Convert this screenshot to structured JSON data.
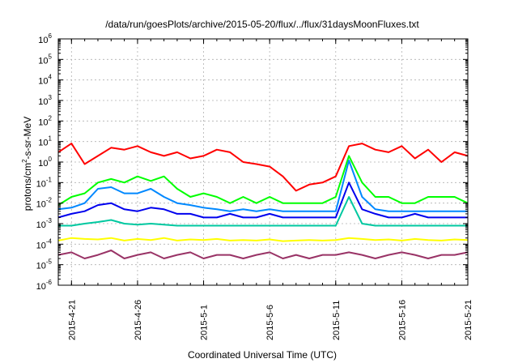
{
  "chart_data": {
    "type": "line",
    "title": "/data/run/goesPlots/archive/2015-05-20/flux/../flux/31daysMoonFluxes.txt",
    "xlabel": "Coordinated Universal Time (UTC)",
    "ylabel_parts": [
      "protons/cm",
      "2",
      "-s-sr-MeV"
    ],
    "y_scale": "log",
    "ylim": [
      1e-06,
      1000000.0
    ],
    "xlim": [
      "2015-04-20",
      "2015-05-21"
    ],
    "grid": true,
    "x_ticks": [
      "2015-4-21",
      "2015-4-26",
      "2015-5-1",
      "2015-5-6",
      "2015-5-11",
      "2015-5-16",
      "2015-5-21"
    ],
    "y_ticks": [
      {
        "base": "10",
        "exp": "6"
      },
      {
        "base": "10",
        "exp": "5"
      },
      {
        "base": "10",
        "exp": "4"
      },
      {
        "base": "10",
        "exp": "3"
      },
      {
        "base": "10",
        "exp": "2"
      },
      {
        "base": "10",
        "exp": "1"
      },
      {
        "base": "10",
        "exp": "0"
      },
      {
        "base": "10",
        "exp": "-1"
      },
      {
        "base": "10",
        "exp": "-2"
      },
      {
        "base": "10",
        "exp": "-3"
      },
      {
        "base": "10",
        "exp": "-4"
      },
      {
        "base": "10",
        "exp": "-5"
      },
      {
        "base": "10",
        "exp": "-6"
      }
    ],
    "series": [
      {
        "color": "#ff0000",
        "x": [
          "2015-04-20",
          "2015-04-21",
          "2015-04-22",
          "2015-04-23",
          "2015-04-24",
          "2015-04-25",
          "2015-04-26",
          "2015-04-27",
          "2015-04-28",
          "2015-04-29",
          "2015-04-30",
          "2015-05-01",
          "2015-05-02",
          "2015-05-03",
          "2015-05-04",
          "2015-05-05",
          "2015-05-06",
          "2015-05-07",
          "2015-05-08",
          "2015-05-09",
          "2015-05-10",
          "2015-05-11",
          "2015-05-12",
          "2015-05-13",
          "2015-05-14",
          "2015-05-15",
          "2015-05-16",
          "2015-05-17",
          "2015-05-18",
          "2015-05-19",
          "2015-05-20",
          "2015-05-21"
        ],
        "y": [
          3,
          8,
          0.8,
          2,
          5,
          4,
          6,
          3,
          2,
          3,
          1.5,
          2,
          4,
          3,
          1,
          0.8,
          0.6,
          0.2,
          0.04,
          0.08,
          0.1,
          0.2,
          6,
          8,
          4,
          3,
          6,
          1.5,
          4,
          1,
          3,
          2
        ]
      },
      {
        "color": "#00ff00",
        "x": [
          "2015-04-20",
          "2015-04-21",
          "2015-04-22",
          "2015-04-23",
          "2015-04-24",
          "2015-04-25",
          "2015-04-26",
          "2015-04-27",
          "2015-04-28",
          "2015-04-29",
          "2015-04-30",
          "2015-05-01",
          "2015-05-02",
          "2015-05-03",
          "2015-05-04",
          "2015-05-05",
          "2015-05-06",
          "2015-05-07",
          "2015-05-08",
          "2015-05-09",
          "2015-05-10",
          "2015-05-11",
          "2015-05-12",
          "2015-05-13",
          "2015-05-14",
          "2015-05-15",
          "2015-05-16",
          "2015-05-17",
          "2015-05-18",
          "2015-05-19",
          "2015-05-20",
          "2015-05-21"
        ],
        "y": [
          0.008,
          0.02,
          0.03,
          0.1,
          0.15,
          0.1,
          0.2,
          0.12,
          0.2,
          0.05,
          0.02,
          0.03,
          0.02,
          0.01,
          0.02,
          0.01,
          0.02,
          0.01,
          0.01,
          0.01,
          0.01,
          0.02,
          2,
          0.1,
          0.02,
          0.02,
          0.01,
          0.01,
          0.02,
          0.02,
          0.02,
          0.01
        ]
      },
      {
        "color": "#0088ff",
        "x": [
          "2015-04-20",
          "2015-04-21",
          "2015-04-22",
          "2015-04-23",
          "2015-04-24",
          "2015-04-25",
          "2015-04-26",
          "2015-04-27",
          "2015-04-28",
          "2015-04-29",
          "2015-04-30",
          "2015-05-01",
          "2015-05-02",
          "2015-05-03",
          "2015-05-04",
          "2015-05-05",
          "2015-05-06",
          "2015-05-07",
          "2015-05-08",
          "2015-05-09",
          "2015-05-10",
          "2015-05-11",
          "2015-05-12",
          "2015-05-13",
          "2015-05-14",
          "2015-05-15",
          "2015-05-16",
          "2015-05-17",
          "2015-05-18",
          "2015-05-19",
          "2015-05-20",
          "2015-05-21"
        ],
        "y": [
          0.005,
          0.006,
          0.01,
          0.05,
          0.06,
          0.03,
          0.03,
          0.05,
          0.02,
          0.01,
          0.008,
          0.006,
          0.005,
          0.004,
          0.005,
          0.004,
          0.005,
          0.004,
          0.004,
          0.004,
          0.004,
          0.004,
          1.2,
          0.02,
          0.005,
          0.004,
          0.004,
          0.004,
          0.004,
          0.004,
          0.004,
          0.004
        ]
      },
      {
        "color": "#0000ee",
        "x": [
          "2015-04-20",
          "2015-04-21",
          "2015-04-22",
          "2015-04-23",
          "2015-04-24",
          "2015-04-25",
          "2015-04-26",
          "2015-04-27",
          "2015-04-28",
          "2015-04-29",
          "2015-04-30",
          "2015-05-01",
          "2015-05-02",
          "2015-05-03",
          "2015-05-04",
          "2015-05-05",
          "2015-05-06",
          "2015-05-07",
          "2015-05-08",
          "2015-05-09",
          "2015-05-10",
          "2015-05-11",
          "2015-05-12",
          "2015-05-13",
          "2015-05-14",
          "2015-05-15",
          "2015-05-16",
          "2015-05-17",
          "2015-05-18",
          "2015-05-19",
          "2015-05-20",
          "2015-05-21"
        ],
        "y": [
          0.002,
          0.003,
          0.004,
          0.008,
          0.01,
          0.005,
          0.004,
          0.006,
          0.005,
          0.003,
          0.003,
          0.002,
          0.002,
          0.003,
          0.002,
          0.002,
          0.003,
          0.002,
          0.002,
          0.002,
          0.002,
          0.002,
          0.1,
          0.005,
          0.003,
          0.002,
          0.002,
          0.003,
          0.002,
          0.002,
          0.002,
          0.002
        ]
      },
      {
        "color": "#00c8a0",
        "x": [
          "2015-04-20",
          "2015-04-21",
          "2015-04-22",
          "2015-04-23",
          "2015-04-24",
          "2015-04-25",
          "2015-04-26",
          "2015-04-27",
          "2015-04-28",
          "2015-04-29",
          "2015-04-30",
          "2015-05-01",
          "2015-05-02",
          "2015-05-03",
          "2015-05-04",
          "2015-05-05",
          "2015-05-06",
          "2015-05-07",
          "2015-05-08",
          "2015-05-09",
          "2015-05-10",
          "2015-05-11",
          "2015-05-12",
          "2015-05-13",
          "2015-05-14",
          "2015-05-15",
          "2015-05-16",
          "2015-05-17",
          "2015-05-18",
          "2015-05-19",
          "2015-05-20",
          "2015-05-21"
        ],
        "y": [
          0.0008,
          0.0008,
          0.001,
          0.0012,
          0.0015,
          0.001,
          0.0009,
          0.001,
          0.0009,
          0.0008,
          0.0008,
          0.0008,
          0.0008,
          0.0008,
          0.0008,
          0.0008,
          0.0008,
          0.0008,
          0.0008,
          0.0008,
          0.0008,
          0.0008,
          0.02,
          0.001,
          0.0008,
          0.0008,
          0.0008,
          0.0008,
          0.0008,
          0.0008,
          0.0008,
          0.0008
        ]
      },
      {
        "color": "#ffff00",
        "x": [
          "2015-04-20",
          "2015-04-21",
          "2015-04-22",
          "2015-04-23",
          "2015-04-24",
          "2015-04-25",
          "2015-04-26",
          "2015-04-27",
          "2015-04-28",
          "2015-04-29",
          "2015-04-30",
          "2015-05-01",
          "2015-05-02",
          "2015-05-03",
          "2015-05-04",
          "2015-05-05",
          "2015-05-06",
          "2015-05-07",
          "2015-05-08",
          "2015-05-09",
          "2015-05-10",
          "2015-05-11",
          "2015-05-12",
          "2015-05-13",
          "2015-05-14",
          "2015-05-15",
          "2015-05-16",
          "2015-05-17",
          "2015-05-18",
          "2015-05-19",
          "2015-05-20",
          "2015-05-21"
        ],
        "y": [
          0.00015,
          0.0002,
          0.00018,
          0.00017,
          0.0002,
          0.00015,
          0.00018,
          0.00016,
          0.0002,
          0.00015,
          0.00017,
          0.00016,
          0.00018,
          0.00015,
          0.00016,
          0.00015,
          0.00017,
          0.00014,
          0.00015,
          0.00016,
          0.00015,
          0.00016,
          0.0002,
          0.00018,
          0.00016,
          0.00017,
          0.00015,
          0.00018,
          0.00016,
          0.00015,
          0.00017,
          0.00016
        ]
      },
      {
        "color": "#993366",
        "x": [
          "2015-04-20",
          "2015-04-21",
          "2015-04-22",
          "2015-04-23",
          "2015-04-24",
          "2015-04-25",
          "2015-04-26",
          "2015-04-27",
          "2015-04-28",
          "2015-04-29",
          "2015-04-30",
          "2015-05-01",
          "2015-05-02",
          "2015-05-03",
          "2015-05-04",
          "2015-05-05",
          "2015-05-06",
          "2015-05-07",
          "2015-05-08",
          "2015-05-09",
          "2015-05-10",
          "2015-05-11",
          "2015-05-12",
          "2015-05-13",
          "2015-05-14",
          "2015-05-15",
          "2015-05-16",
          "2015-05-17",
          "2015-05-18",
          "2015-05-19",
          "2015-05-20",
          "2015-05-21"
        ],
        "y": [
          3e-05,
          4e-05,
          2e-05,
          3e-05,
          5e-05,
          2e-05,
          3e-05,
          4e-05,
          2e-05,
          3e-05,
          4e-05,
          2e-05,
          3e-05,
          3e-05,
          2e-05,
          3e-05,
          4e-05,
          2e-05,
          3e-05,
          2e-05,
          3e-05,
          3e-05,
          4e-05,
          3e-05,
          2e-05,
          3e-05,
          4e-05,
          3e-05,
          2e-05,
          3e-05,
          3e-05,
          4e-05
        ]
      }
    ]
  }
}
